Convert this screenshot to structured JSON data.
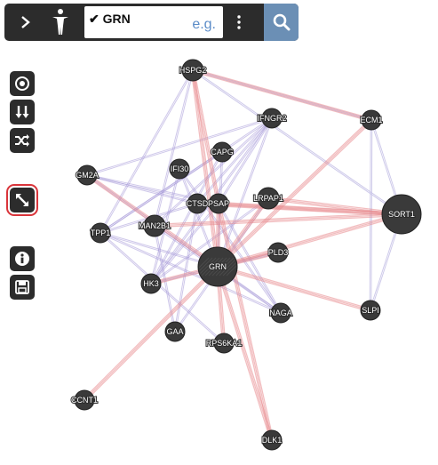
{
  "toolbar": {
    "query": "GRN",
    "placeholder_hint": "e.g."
  },
  "side_buttons": [
    {
      "id": "center",
      "icon": "target-icon"
    },
    {
      "id": "layout",
      "icon": "sort-down-icon"
    },
    {
      "id": "shuffle",
      "icon": "shuffle-icon"
    },
    {
      "id": "expand",
      "icon": "resize-diagonal-icon",
      "active": true
    },
    {
      "id": "info",
      "icon": "info-icon"
    },
    {
      "id": "save",
      "icon": "floppy-icon"
    }
  ],
  "colors": {
    "edge_physical": "#e8888c",
    "edge_coexpression": "#a79ad8",
    "edge_other": "#c9c4e8",
    "node": "#3a3a3a",
    "search_button": "#6b8fb5",
    "active_outline": "#d9343a"
  },
  "network": {
    "nodes": [
      {
        "id": "HSPG2",
        "label": "HSPG2"
      },
      {
        "id": "IFNGR2",
        "label": "IFNGR2"
      },
      {
        "id": "ECM1",
        "label": "ECM1"
      },
      {
        "id": "CAPG",
        "label": "CAPG"
      },
      {
        "id": "GM2A",
        "label": "GM2A"
      },
      {
        "id": "IFI30",
        "label": "IFI30"
      },
      {
        "id": "CTSD",
        "label": "CTSD"
      },
      {
        "id": "PSAP",
        "label": "PSAP"
      },
      {
        "id": "LRPAP1",
        "label": "LRPAP1"
      },
      {
        "id": "SORT1",
        "label": "SORT1"
      },
      {
        "id": "TPP1",
        "label": "TPP1"
      },
      {
        "id": "MAN2B1",
        "label": "MAN2B1"
      },
      {
        "id": "PLD3",
        "label": "PLD3"
      },
      {
        "id": "GRN",
        "label": "GRN"
      },
      {
        "id": "HK3",
        "label": "HK3"
      },
      {
        "id": "NAGA",
        "label": "NAGA"
      },
      {
        "id": "SLPI",
        "label": "SLPI"
      },
      {
        "id": "GAA",
        "label": "GAA"
      },
      {
        "id": "RPS6KA1",
        "label": "RPS6KA1"
      },
      {
        "id": "CCNT1",
        "label": "CCNT1"
      },
      {
        "id": "DLK1",
        "label": "DLK1"
      }
    ],
    "edges_physical": [
      [
        "GRN",
        "HSPG2"
      ],
      [
        "GRN",
        "SORT1"
      ],
      [
        "GRN",
        "PLD3"
      ],
      [
        "GRN",
        "DLK1"
      ],
      [
        "GRN",
        "CCNT1"
      ],
      [
        "GRN",
        "ECM1"
      ],
      [
        "GRN",
        "SLPI"
      ],
      [
        "GRN",
        "RPS6KA1"
      ],
      [
        "GRN",
        "LRPAP1"
      ],
      [
        "GRN",
        "GM2A"
      ],
      [
        "GRN",
        "PSAP"
      ],
      [
        "GRN",
        "HK3"
      ],
      [
        "SORT1",
        "PSAP"
      ],
      [
        "SORT1",
        "LRPAP1"
      ],
      [
        "SORT1",
        "CTSD"
      ],
      [
        "HSPG2",
        "ECM1"
      ],
      [
        "PSAP",
        "DLK1"
      ],
      [
        "HSPG2",
        "PSAP"
      ],
      [
        "SORT1",
        "MAN2B1"
      ]
    ],
    "edges_coexpression": [
      [
        "IFNGR2",
        "GRN"
      ],
      [
        "IFNGR2",
        "PSAP"
      ],
      [
        "IFNGR2",
        "CTSD"
      ],
      [
        "IFNGR2",
        "GM2A"
      ],
      [
        "IFNGR2",
        "TPP1"
      ],
      [
        "IFNGR2",
        "MAN2B1"
      ],
      [
        "IFNGR2",
        "HK3"
      ],
      [
        "CAPG",
        "GRN"
      ],
      [
        "CAPG",
        "TPP1"
      ],
      [
        "CAPG",
        "HK3"
      ],
      [
        "GM2A",
        "CTSD"
      ],
      [
        "GM2A",
        "PSAP"
      ],
      [
        "GM2A",
        "NAGA"
      ],
      [
        "IFI30",
        "GRN"
      ],
      [
        "IFI30",
        "HK3"
      ],
      [
        "IFI30",
        "NAGA"
      ],
      [
        "CTSD",
        "TPP1"
      ],
      [
        "CTSD",
        "GAA"
      ],
      [
        "PSAP",
        "HK3"
      ],
      [
        "PSAP",
        "NAGA"
      ],
      [
        "TPP1",
        "GRN"
      ],
      [
        "TPP1",
        "NAGA"
      ],
      [
        "MAN2B1",
        "NAGA"
      ],
      [
        "MAN2B1",
        "GAA"
      ],
      [
        "HK3",
        "PLD3"
      ],
      [
        "GAA",
        "LRPAP1"
      ],
      [
        "RPS6KA1",
        "TPP1"
      ],
      [
        "HSPG2",
        "MAN2B1"
      ],
      [
        "HSPG2",
        "TPP1"
      ],
      [
        "LRPAP1",
        "HK3"
      ]
    ],
    "edges_other": [
      [
        "ECM1",
        "SORT1"
      ],
      [
        "ECM1",
        "SLPI"
      ],
      [
        "HSPG2",
        "SORT1"
      ],
      [
        "SLPI",
        "SORT1"
      ],
      [
        "HSPG2",
        "ECM1"
      ]
    ]
  }
}
